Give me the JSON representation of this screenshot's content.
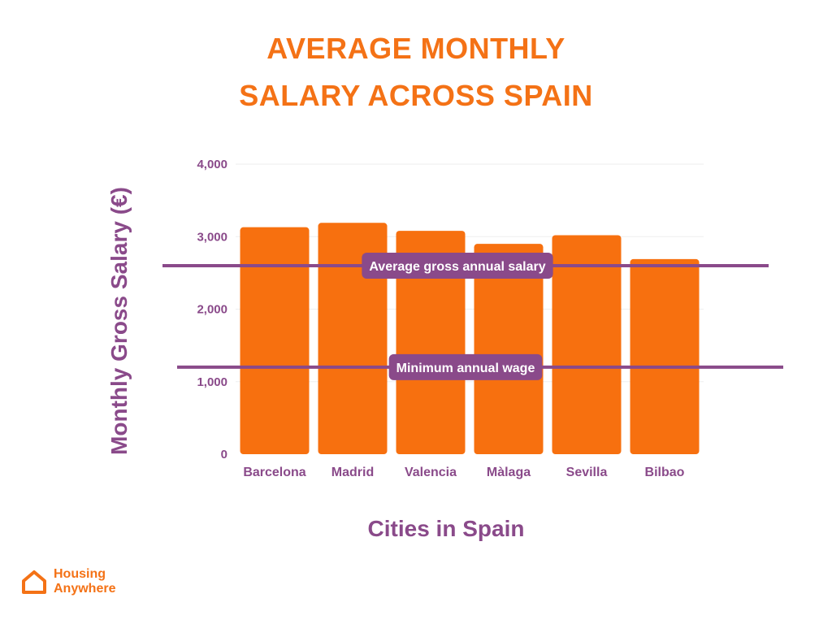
{
  "title": {
    "line1": "AVERAGE MONTHLY",
    "line2": "SALARY ACROSS SPAIN"
  },
  "colors": {
    "title": "#f47216",
    "bar": "#f7700f",
    "text": "#8a4a8a",
    "reference_line": "#8a4a8a",
    "grid": "#eeeeee"
  },
  "chart_data": {
    "type": "bar",
    "categories": [
      "Barcelona",
      "Madrid",
      "Valencia",
      "Màlaga",
      "Sevilla",
      "Bilbao"
    ],
    "values": [
      3130,
      3190,
      3080,
      2900,
      3020,
      2690
    ],
    "xlabel": "Cities in Spain",
    "ylabel": "Monthly Gross Salary (€)",
    "ylim": [
      0,
      4000
    ],
    "yticks": [
      0,
      1000,
      2000,
      3000,
      4000
    ],
    "ytick_labels": [
      "0",
      "1,000",
      "2,000",
      "3,000",
      "4,000"
    ],
    "grid": true,
    "reference_lines": [
      {
        "label": "Average gross annual salary",
        "value": 2600
      },
      {
        "label": "Minimum annual wage",
        "value": 1200
      }
    ]
  },
  "logo": {
    "icon": "house-icon",
    "line1": "Housing",
    "line2": "Anywhere"
  }
}
